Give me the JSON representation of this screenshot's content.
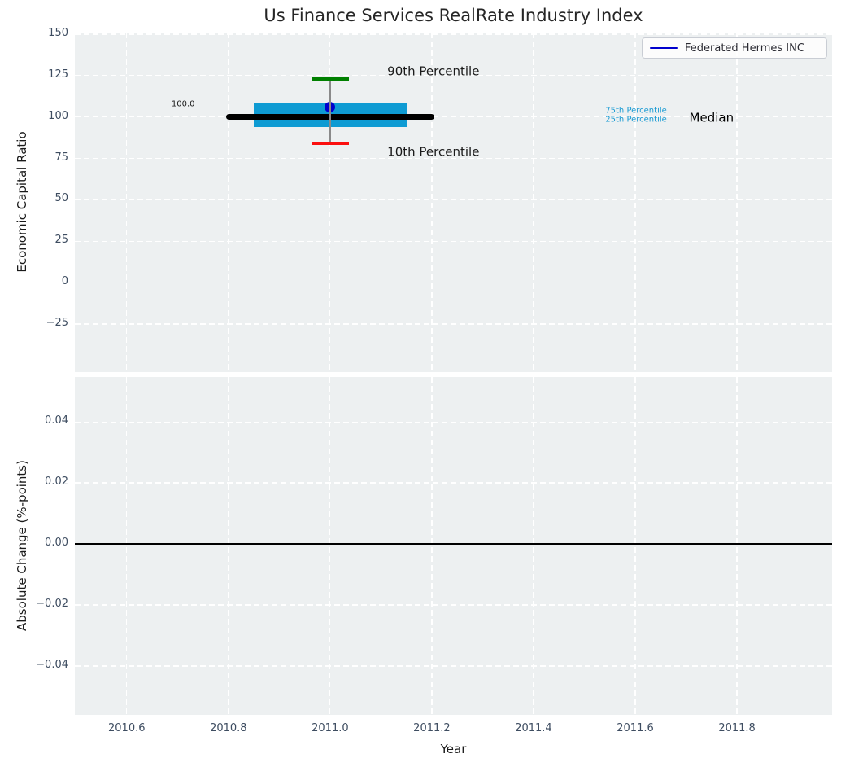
{
  "title": "Us Finance Services RealRate Industry Index",
  "legend": {
    "label": "Federated Hermes INC",
    "line_color": "#0000cd"
  },
  "chart_data": {
    "type": "boxplot",
    "title": "Us Finance Services RealRate Industry Index",
    "xlabel": "Year",
    "xlim": [
      2010.498,
      2011.987
    ],
    "xticks": [
      [
        2010.6,
        "2010.6"
      ],
      [
        2010.8,
        "2010.8"
      ],
      [
        2011.0,
        "2011.0"
      ],
      [
        2011.2,
        "2011.2"
      ],
      [
        2011.4,
        "2011.4"
      ],
      [
        2011.6,
        "2011.6"
      ],
      [
        2011.8,
        "2011.8"
      ]
    ],
    "colors": {
      "panel_background": "#edf0f1",
      "grid": "#ffffff",
      "tick_labels": "#3e4d61",
      "title": "#262626",
      "text": "#1a1a1a"
    },
    "panels": [
      {
        "name": "index",
        "ylabel": "Economic Capital Ratio",
        "ylim": [
          -54,
          151
        ],
        "yticks": [
          [
            150,
            "150"
          ],
          [
            125,
            "125"
          ],
          [
            100,
            "100"
          ],
          [
            75,
            "75"
          ],
          [
            50,
            "50"
          ],
          [
            25,
            "25"
          ],
          [
            0,
            "0"
          ],
          [
            -25,
            "−25"
          ]
        ],
        "box": {
          "x": 2011.0,
          "median": 100.0,
          "q3": 108.0,
          "q1": 94.0,
          "p90": 123.0,
          "p10": 84.0,
          "median_halfwidth_years": 0.2,
          "box_halfwidth_years": 0.15,
          "cap_halfwidth_years": 0.037,
          "box_color": "#0e9bd3",
          "median_color": "#000000",
          "p90_color": "#008000",
          "p10_color": "#fb0f0f",
          "whisker_color": "#8a8a8a",
          "company_point": {
            "x": 2011.0,
            "y": 106.0,
            "color": "#0000cd"
          }
        },
        "annotations": [
          {
            "text": "90th Percentile",
            "x": 2011.203,
            "y": 127.5,
            "color": "#1a1a1a",
            "size": 15,
            "align": "center"
          },
          {
            "text": "10th Percentile",
            "x": 2011.203,
            "y": 78.7,
            "color": "#1a1a1a",
            "size": 15,
            "align": "center"
          },
          {
            "text": "100.0",
            "x": 2010.711,
            "y": 107.5,
            "color": "#1a1a1a",
            "size": 10,
            "align": "center"
          },
          {
            "text": "75th Percentile",
            "x": 2011.662,
            "y": 103.8,
            "color": "#189ad3",
            "size": 10,
            "align": "right"
          },
          {
            "text": "25th Percentile",
            "x": 2011.662,
            "y": 98.4,
            "color": "#189ad3",
            "size": 10,
            "align": "right"
          },
          {
            "text": "Median",
            "x": 2011.75,
            "y": 99.4,
            "color": "#000000",
            "size": 15,
            "align": "center"
          }
        ]
      },
      {
        "name": "change",
        "ylabel": "Absolute Change (%-points)",
        "ylim": [
          -0.056,
          0.0547
        ],
        "yticks": [
          [
            0.04,
            "0.04"
          ],
          [
            0.02,
            "0.02"
          ],
          [
            0.0,
            "0.00"
          ],
          [
            -0.02,
            "−0.02"
          ],
          [
            -0.04,
            "−0.04"
          ]
        ],
        "zero_line": 0.0
      }
    ]
  }
}
